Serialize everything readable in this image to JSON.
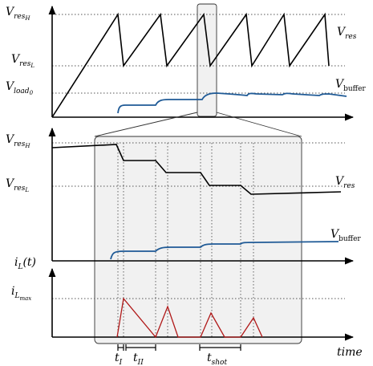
{
  "labels": {
    "vres_h": "V_{res_H}",
    "vres_l": "V_{res_L}",
    "vload0": "V_{load_0}",
    "vres": "V_{res}",
    "vbuffer": "V_buffer",
    "il_t": "i_L(t)",
    "il_max": "i_{L_max}",
    "t_i": "t_I",
    "t_ii": "t_{II}",
    "t_shot": "t_shot",
    "time": "time"
  },
  "colors": {
    "vres": "#000000",
    "vbuffer": "#1f5a96",
    "inductor_current": "#b01818",
    "zoom_fill": "#f1f1f1"
  }
}
